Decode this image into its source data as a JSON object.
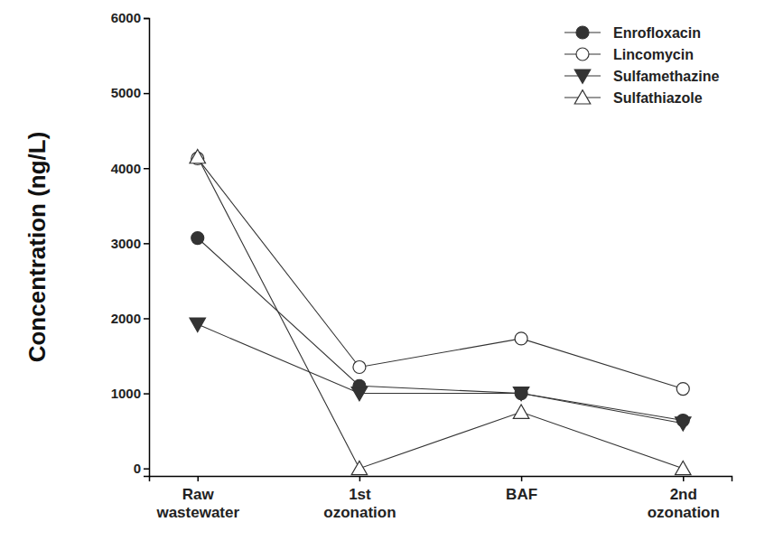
{
  "chart_data": {
    "type": "line",
    "y_label": "Concentration (ng/L)",
    "categories": [
      "Raw wastewater",
      "1st ozonation",
      "BAF",
      "2nd ozonation"
    ],
    "series": [
      {
        "name": "Enrofloxacin",
        "color": "#333333",
        "marker": "circle",
        "values": [
          3070,
          1100,
          1000,
          640
        ]
      },
      {
        "name": "Lincomycin",
        "color": "#333333",
        "marker": "circle-open",
        "values": [
          4130,
          1350,
          1730,
          1060
        ]
      },
      {
        "name": "Sulfamethazine",
        "color": "#333333",
        "marker": "triangle-down",
        "values": [
          1920,
          1000,
          1000,
          600
        ]
      },
      {
        "name": "Sulfathiazole",
        "color": "#333333",
        "marker": "triangle-open",
        "values": [
          4150,
          0,
          750,
          0
        ]
      }
    ],
    "ylim": [
      -100,
      6000
    ],
    "yticks": [
      0,
      1000,
      2000,
      3000,
      4000,
      5000,
      6000
    ],
    "legend": "upper right",
    "grid": false
  }
}
